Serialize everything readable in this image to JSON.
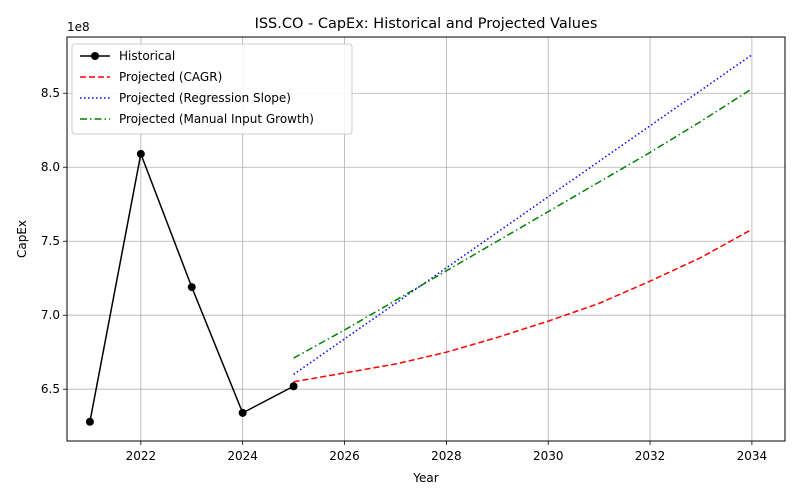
{
  "chart_data": {
    "type": "line",
    "title": "ISS.CO - CapEx: Historical and Projected Values",
    "xlabel": "Year",
    "ylabel": "CapEx",
    "offset_label": "1e8",
    "xlim": [
      2020.55,
      2034.65
    ],
    "ylim": [
      615000000,
      888000000
    ],
    "x_ticks": [
      2022,
      2024,
      2026,
      2028,
      2030,
      2032,
      2034
    ],
    "y_ticks": [
      650000000,
      700000000,
      750000000,
      800000000,
      850000000
    ],
    "y_tick_labels": [
      "6.5",
      "7.0",
      "7.5",
      "8.0",
      "8.5"
    ],
    "grid": true,
    "legend_position": "top-left",
    "series": [
      {
        "name": "Historical",
        "color": "#000000",
        "style": "solid-marker",
        "x": [
          2021,
          2022,
          2023,
          2024,
          2025
        ],
        "y": [
          628000000,
          809000000,
          719000000,
          634000000,
          652000000
        ]
      },
      {
        "name": "Projected (CAGR)",
        "color": "#ff0000",
        "style": "dashed",
        "x": [
          2025,
          2026,
          2027,
          2028,
          2029,
          2030,
          2031,
          2032,
          2033,
          2034
        ],
        "y": [
          655000000,
          661000000,
          667000000,
          675000000,
          685000000,
          696000000,
          708000000,
          723000000,
          739000000,
          758000000
        ]
      },
      {
        "name": "Projected (Regression Slope)",
        "color": "#0000ff",
        "style": "dotted",
        "x": [
          2025,
          2026,
          2027,
          2028,
          2029,
          2030,
          2031,
          2032,
          2033,
          2034
        ],
        "y": [
          660000000,
          684000000,
          708000000,
          732000000,
          756000000,
          780000000,
          804000000,
          828000000,
          852000000,
          876000000
        ]
      },
      {
        "name": "Projected (Manual Input Growth)",
        "color": "#008000",
        "style": "dashdot",
        "x": [
          2025,
          2026,
          2027,
          2028,
          2029,
          2030,
          2031,
          2032,
          2033,
          2034
        ],
        "y": [
          671000000,
          690000000,
          710000000,
          730000000,
          750000000,
          770000000,
          790000000,
          810000000,
          831000000,
          853000000
        ]
      }
    ]
  }
}
